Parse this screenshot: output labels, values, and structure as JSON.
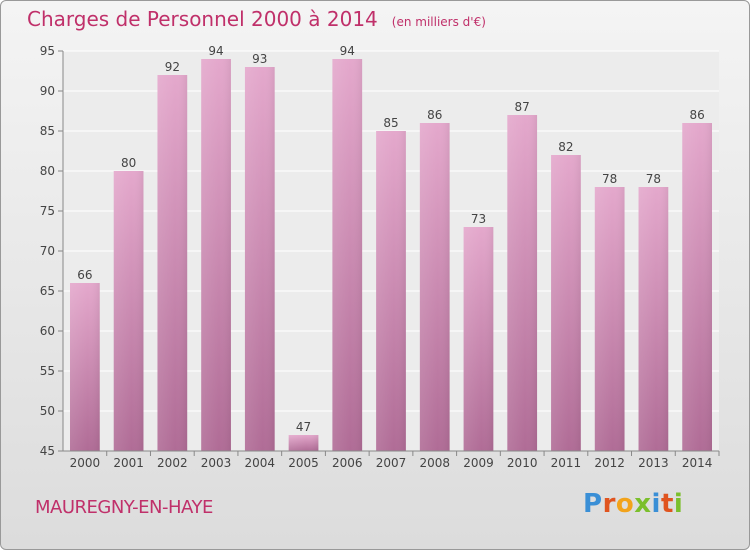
{
  "chart_data": {
    "type": "bar",
    "title": "Charges de Personnel 2000 à 2014",
    "subtitle": "(en milliers d'€)",
    "categories": [
      "2000",
      "2001",
      "2002",
      "2003",
      "2004",
      "2005",
      "2006",
      "2007",
      "2008",
      "2009",
      "2010",
      "2011",
      "2012",
      "2013",
      "2014"
    ],
    "values": [
      66,
      80,
      92,
      94,
      93,
      47,
      94,
      85,
      86,
      73,
      87,
      82,
      78,
      78,
      86
    ],
    "yticks": [
      45,
      50,
      55,
      60,
      65,
      70,
      75,
      80,
      85,
      90,
      95
    ],
    "ylim": [
      45,
      95
    ],
    "grid": true,
    "bar_color": "#d98fba",
    "xlabel": "",
    "ylabel": ""
  },
  "footer": {
    "commune": "MAUREGNY-EN-HAYE",
    "logo": "Proxiti"
  },
  "colors": {
    "accent": "#c0306a"
  }
}
